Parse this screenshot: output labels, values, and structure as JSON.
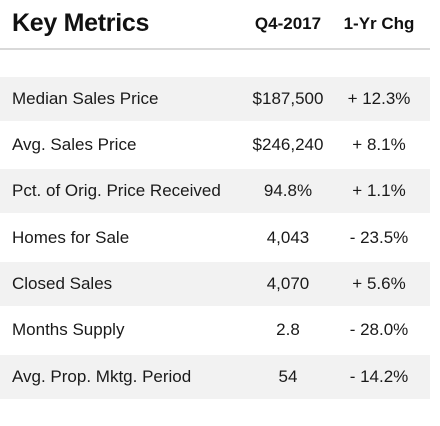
{
  "title": "Key Metrics",
  "columns": {
    "period": "Q4-2017",
    "change": "1-Yr Chg"
  },
  "rows": [
    {
      "label": "Median Sales Price",
      "value": "$187,500",
      "change": "+ 12.3%"
    },
    {
      "label": "Avg. Sales Price",
      "value": "$246,240",
      "change": "+ 8.1%"
    },
    {
      "label": "Pct. of Orig. Price Received",
      "value": "94.8%",
      "change": "+ 1.1%"
    },
    {
      "label": "Homes for Sale",
      "value": "4,043",
      "change": "- 23.5%"
    },
    {
      "label": "Closed Sales",
      "value": "4,070",
      "change": "+ 5.6%"
    },
    {
      "label": "Months Supply",
      "value": "2.8",
      "change": "- 28.0%"
    },
    {
      "label": "Avg. Prop. Mktg. Period",
      "value": "54",
      "change": "- 14.2%"
    }
  ]
}
